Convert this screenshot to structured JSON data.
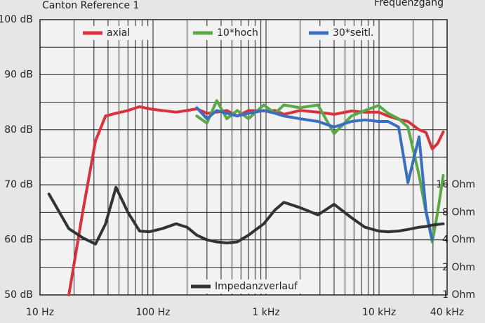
{
  "chart_data": {
    "type": "line",
    "title": "Canton Reference 1",
    "subtitle": "Frequenzgang",
    "x": [
      12,
      18,
      24,
      31,
      38,
      47,
      60,
      76,
      93,
      120,
      160,
      200,
      244,
      300,
      366,
      450,
      556,
      700,
      955,
      1200,
      1440,
      2000,
      2880,
      4000,
      5700,
      7500,
      9900,
      12000,
      14900,
      18000,
      22600,
      26000,
      29600,
      33000,
      37000
    ],
    "xlim": [
      10,
      40000
    ],
    "xlog": true,
    "xticks": [
      {
        "value": 10,
        "label": "10 Hz"
      },
      {
        "value": 100,
        "label": "100 Hz"
      },
      {
        "value": 1000,
        "label": "1 kHz"
      },
      {
        "value": 10000,
        "label": "10 kHz"
      },
      {
        "value": 40000,
        "label": "40 kHz"
      }
    ],
    "xminor": [
      20,
      30,
      40,
      50,
      60,
      70,
      80,
      90,
      200,
      300,
      400,
      500,
      600,
      700,
      800,
      900,
      2000,
      3000,
      4000,
      5000,
      6000,
      7000,
      8000,
      9000,
      20000,
      30000
    ],
    "ylim": [
      50,
      100
    ],
    "yticks": [
      {
        "value": 100,
        "label": "100 dB"
      },
      {
        "value": 90,
        "label": "90 dB"
      },
      {
        "value": 80,
        "label": "80 dB"
      },
      {
        "value": 70,
        "label": "70 dB"
      },
      {
        "value": 60,
        "label": "60 dB"
      },
      {
        "value": 50,
        "label": "50 dB"
      }
    ],
    "yminor": [
      75,
      85,
      95
    ],
    "y2lim": [
      1,
      1024
    ],
    "y2log": true,
    "y2ticks": [
      {
        "value": 16,
        "label": "16 Ohm"
      },
      {
        "value": 8,
        "label": "8 Ohm"
      },
      {
        "value": 4,
        "label": "4 Ohm"
      },
      {
        "value": 2,
        "label": "2 Ohm"
      },
      {
        "value": 1,
        "label": "1 Ohm"
      }
    ],
    "grid": true,
    "series": [
      {
        "name": "axial",
        "color": "#d8323c",
        "values": [
          null,
          50,
          65.3,
          78,
          82.5,
          83,
          83.5,
          84.2,
          83.8,
          83.5,
          83.2,
          83.5,
          83.8,
          83,
          83.2,
          83.5,
          82.5,
          83.5,
          83.4,
          83.5,
          82.8,
          83.5,
          83.2,
          82.8,
          83.4,
          83.2,
          83.2,
          82.5,
          81.9,
          81.5,
          80,
          79.5,
          76.5,
          77.5,
          79.6
        ]
      },
      {
        "name": "10*hoch",
        "color": "#5aa846",
        "values": [
          null,
          null,
          null,
          null,
          null,
          null,
          null,
          null,
          null,
          null,
          null,
          null,
          82.5,
          81.2,
          85.3,
          82,
          83.5,
          82,
          84.5,
          83,
          84.5,
          84,
          84.5,
          79.3,
          82.5,
          83.5,
          84.4,
          83,
          82,
          80.5,
          71.7,
          65,
          59.6,
          65,
          71.7
        ]
      },
      {
        "name": "30*seitl.",
        "color": "#3a6fc0",
        "values": [
          null,
          null,
          null,
          null,
          null,
          null,
          null,
          null,
          null,
          null,
          null,
          null,
          84,
          82,
          83.5,
          83,
          82.5,
          83,
          83.5,
          83,
          82.5,
          82,
          81.5,
          80.5,
          81.5,
          81.8,
          81.5,
          81.5,
          80.5,
          70.4,
          78.7,
          65.3,
          60,
          null,
          null
        ]
      },
      {
        "name": "Impedanzverlauf",
        "color": "#333333",
        "axis": "y2",
        "values": [
          12.7,
          5.3,
          4.2,
          3.6,
          6,
          15,
          8,
          5,
          4.9,
          5.3,
          6,
          5.5,
          4.5,
          4,
          3.8,
          3.7,
          3.8,
          4.5,
          6,
          8.5,
          10.3,
          9,
          7.5,
          9.8,
          7,
          5.5,
          5,
          4.9,
          5,
          5.2,
          5.5,
          5.6,
          5.8,
          5.9,
          6
        ]
      }
    ]
  }
}
